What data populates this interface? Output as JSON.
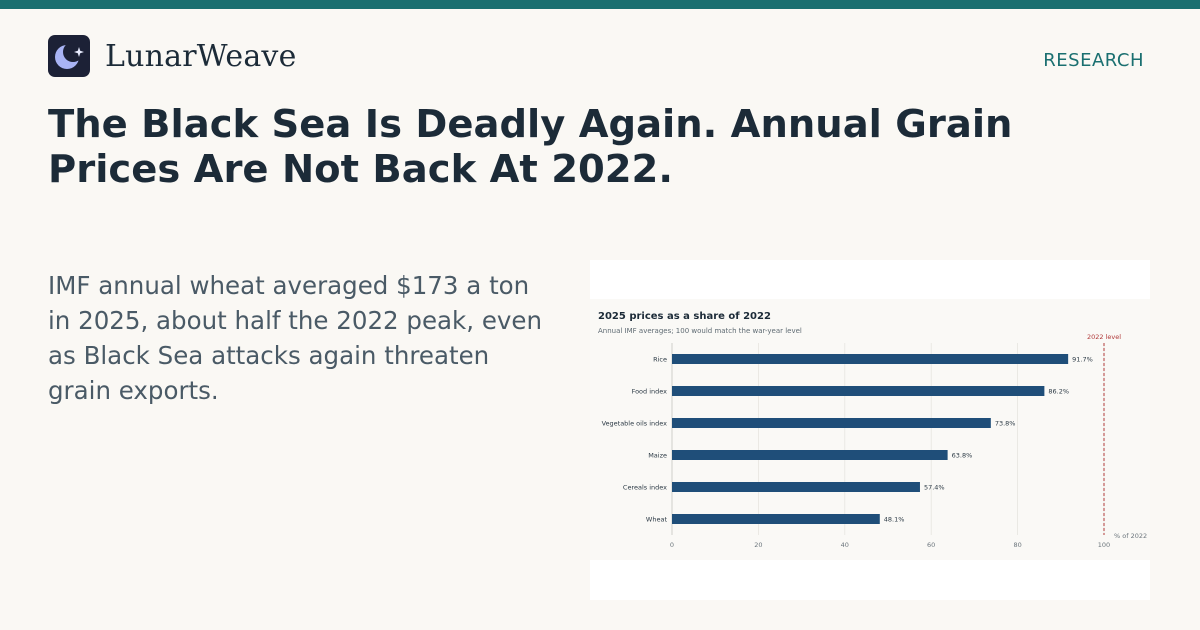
{
  "brand": {
    "name": "LunarWeave",
    "logo_icon": "crescent-moon-star-icon"
  },
  "section": "RESEARCH",
  "headline": "The Black Sea Is Deadly Again. Annual Grain Prices Are Not Back At 2022.",
  "dek": "IMF annual wheat averaged $173 a ton in 2025, about half the 2022 peak, even as Black Sea attacks again threaten grain exports.",
  "colors": {
    "accent": "#1a6f70",
    "bar": "#1f4e79",
    "reference": "#b03a3a"
  },
  "chart_data": {
    "type": "bar",
    "orientation": "horizontal",
    "title": "2025 prices as a share of 2022",
    "subtitle": "Annual IMF averages; 100 would match the war-year level",
    "categories": [
      "Rice",
      "Food index",
      "Vegetable oils index",
      "Maize",
      "Cereals index",
      "Wheat"
    ],
    "values": [
      91.7,
      86.2,
      73.8,
      63.8,
      57.4,
      48.1
    ],
    "data_labels": [
      "91.7%",
      "86.2%",
      "73.8%",
      "63.8%",
      "57.4%",
      "48.1%"
    ],
    "xlim": [
      0,
      100
    ],
    "xticks": [
      "0",
      "20",
      "40",
      "60",
      "80",
      "100"
    ],
    "xlabel": "% of 2022",
    "reference_line": {
      "value": 100,
      "label": "2022 level"
    },
    "grid": true
  }
}
